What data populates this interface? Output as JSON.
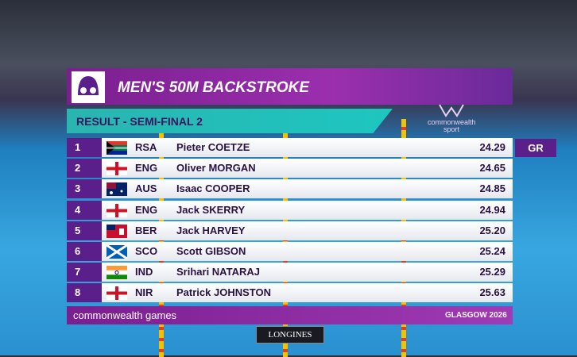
{
  "header": {
    "title": "MEN'S 50M BACKSTROKE",
    "subtitle": "RESULT - SEMI-FINAL 2",
    "logo_line1": "commonwealth",
    "logo_line2": "sport"
  },
  "table": {
    "rows": [
      [
        "1",
        "RSA",
        "Pieter COETZE",
        "24.29"
      ],
      [
        "2",
        "ENG",
        "Oliver MORGAN",
        "24.65"
      ],
      [
        "3",
        "AUS",
        "Isaac COOPER",
        "24.85"
      ],
      [
        "4",
        "ENG",
        "Jack SKERRY",
        "24.94"
      ],
      [
        "5",
        "BER",
        "Jack HARVEY",
        "25.20"
      ],
      [
        "6",
        "SCO",
        "Scott GIBSON",
        "25.24"
      ],
      [
        "7",
        "IND",
        "Srihari NATARAJ",
        "25.29"
      ],
      [
        "8",
        "NIR",
        "Patrick JOHNSTON",
        "25.63"
      ]
    ],
    "record": {
      "row": 0,
      "label": "GR"
    }
  },
  "footer": {
    "left": "commonwealth games",
    "right": "GLASGOW 2026",
    "sponsor": "LONGINES"
  }
}
